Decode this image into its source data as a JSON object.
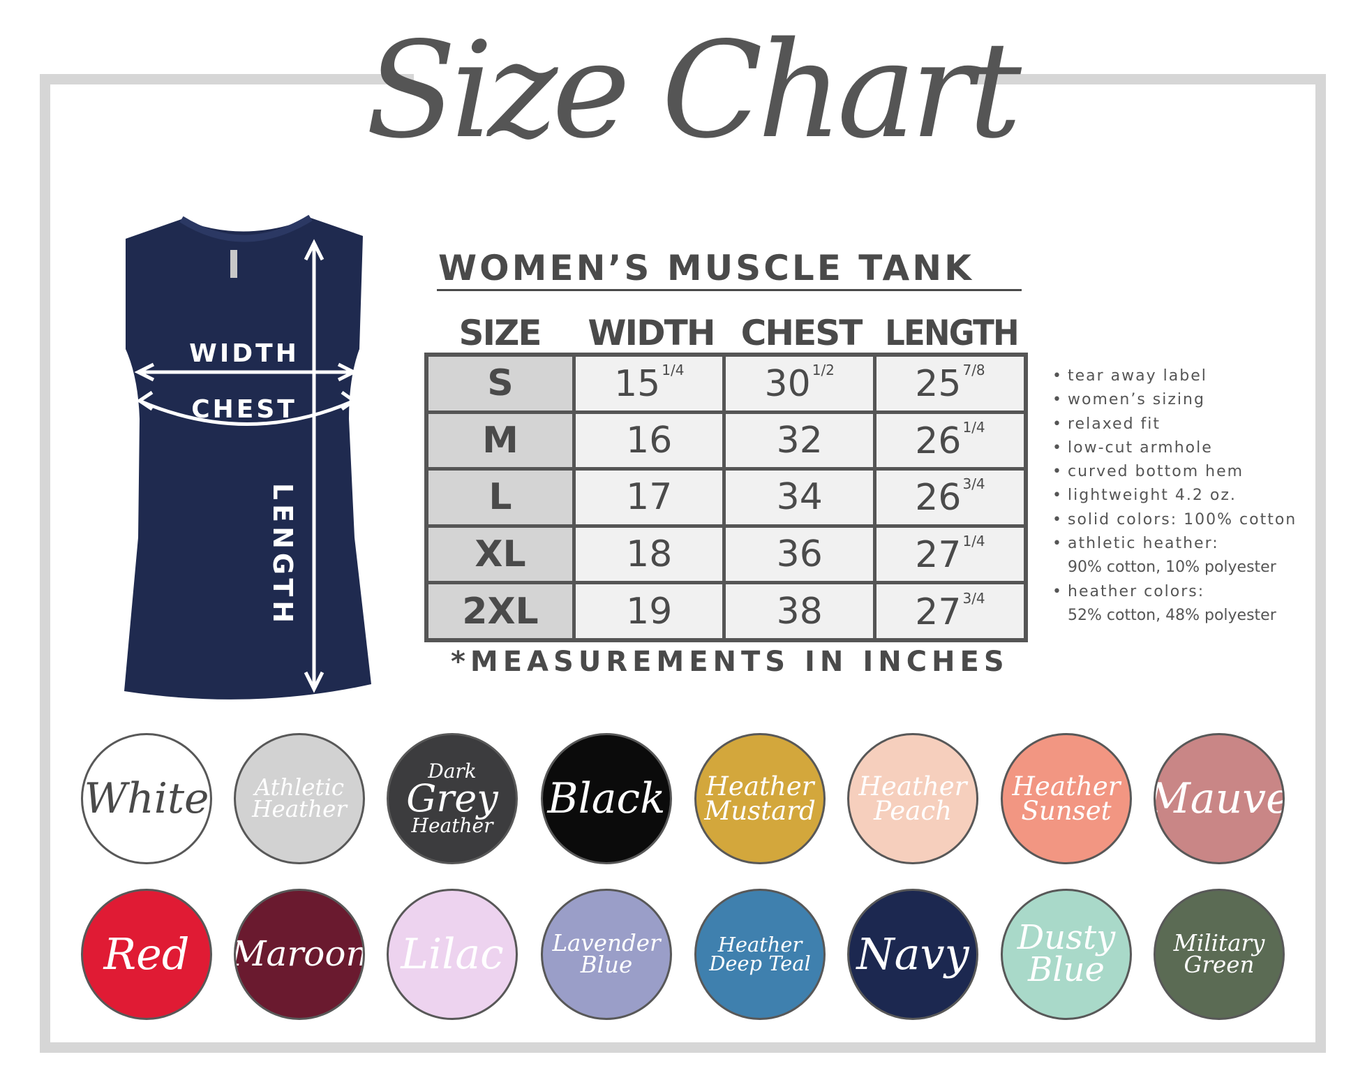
{
  "title": "Size Chart",
  "product": {
    "title": "WOMEN’S MUSCLE TANK",
    "diagram_labels": {
      "width": "WIDTH",
      "chest": "CHEST",
      "length": "LENGTH"
    },
    "shirt_color": "#1f2a4f"
  },
  "table": {
    "headers": [
      "SIZE",
      "WIDTH",
      "CHEST",
      "LENGTH"
    ],
    "rows": [
      {
        "size": "S",
        "width": "15",
        "width_frac": "1/4",
        "chest": "30",
        "chest_frac": "1/2",
        "length": "25",
        "length_frac": "7/8"
      },
      {
        "size": "M",
        "width": "16",
        "width_frac": "",
        "chest": "32",
        "chest_frac": "",
        "length": "26",
        "length_frac": "1/4"
      },
      {
        "size": "L",
        "width": "17",
        "width_frac": "",
        "chest": "34",
        "chest_frac": "",
        "length": "26",
        "length_frac": "3/4"
      },
      {
        "size": "XL",
        "width": "18",
        "width_frac": "",
        "chest": "36",
        "chest_frac": "",
        "length": "27",
        "length_frac": "1/4"
      },
      {
        "size": "2XL",
        "width": "19",
        "width_frac": "",
        "chest": "38",
        "chest_frac": "",
        "length": "27",
        "length_frac": "3/4"
      }
    ],
    "note": "*MEASUREMENTS IN INCHES"
  },
  "features": [
    {
      "text": "tear away label"
    },
    {
      "text": "women’s sizing"
    },
    {
      "text": "relaxed fit"
    },
    {
      "text": "low-cut armhole"
    },
    {
      "text": "curved bottom hem"
    },
    {
      "text": "lightweight 4.2 oz."
    },
    {
      "text": "solid colors: 100% cotton"
    },
    {
      "text": "athletic heather:",
      "detail": "90% cotton, 10% polyester"
    },
    {
      "text": "heather colors:",
      "detail": "52% cotton, 48% polyester"
    }
  ],
  "swatches": [
    {
      "lines": [
        "White"
      ],
      "color": "#ffffff",
      "text_color": "#4a4a4a"
    },
    {
      "lines": [
        "Athletic",
        "Heather"
      ],
      "color": "#d2d2d2",
      "text_color": "#ffffff"
    },
    {
      "lines": [
        "Dark",
        "Grey",
        "Heather"
      ],
      "color": "#3c3c3e",
      "text_color": "#ffffff"
    },
    {
      "lines": [
        "Black"
      ],
      "color": "#0b0b0b",
      "text_color": "#ffffff"
    },
    {
      "lines": [
        "Heather",
        "Mustard"
      ],
      "color": "#d3a73c",
      "text_color": "#ffffff"
    },
    {
      "lines": [
        "Heather",
        "Peach"
      ],
      "color": "#f6cfbd",
      "text_color": "#ffffff"
    },
    {
      "lines": [
        "Heather",
        "Sunset"
      ],
      "color": "#f29682",
      "text_color": "#ffffff"
    },
    {
      "lines": [
        "Mauve"
      ],
      "color": "#c98686",
      "text_color": "#ffffff"
    },
    {
      "lines": [
        "Red"
      ],
      "color": "#e01b34",
      "text_color": "#ffffff"
    },
    {
      "lines": [
        "Maroon"
      ],
      "color": "#6a1a2f",
      "text_color": "#ffffff"
    },
    {
      "lines": [
        "Lilac"
      ],
      "color": "#edd3ef",
      "text_color": "#ffffff"
    },
    {
      "lines": [
        "Lavender",
        "Blue"
      ],
      "color": "#9a9ec8",
      "text_color": "#ffffff"
    },
    {
      "lines": [
        "Heather",
        "Deep Teal"
      ],
      "color": "#3f80ae",
      "text_color": "#ffffff"
    },
    {
      "lines": [
        "Navy"
      ],
      "color": "#1c2850",
      "text_color": "#ffffff"
    },
    {
      "lines": [
        "Dusty",
        "Blue"
      ],
      "color": "#a9d9c9",
      "text_color": "#ffffff"
    },
    {
      "lines": [
        "Military",
        "Green"
      ],
      "color": "#5b6b54",
      "text_color": "#ffffff"
    }
  ]
}
